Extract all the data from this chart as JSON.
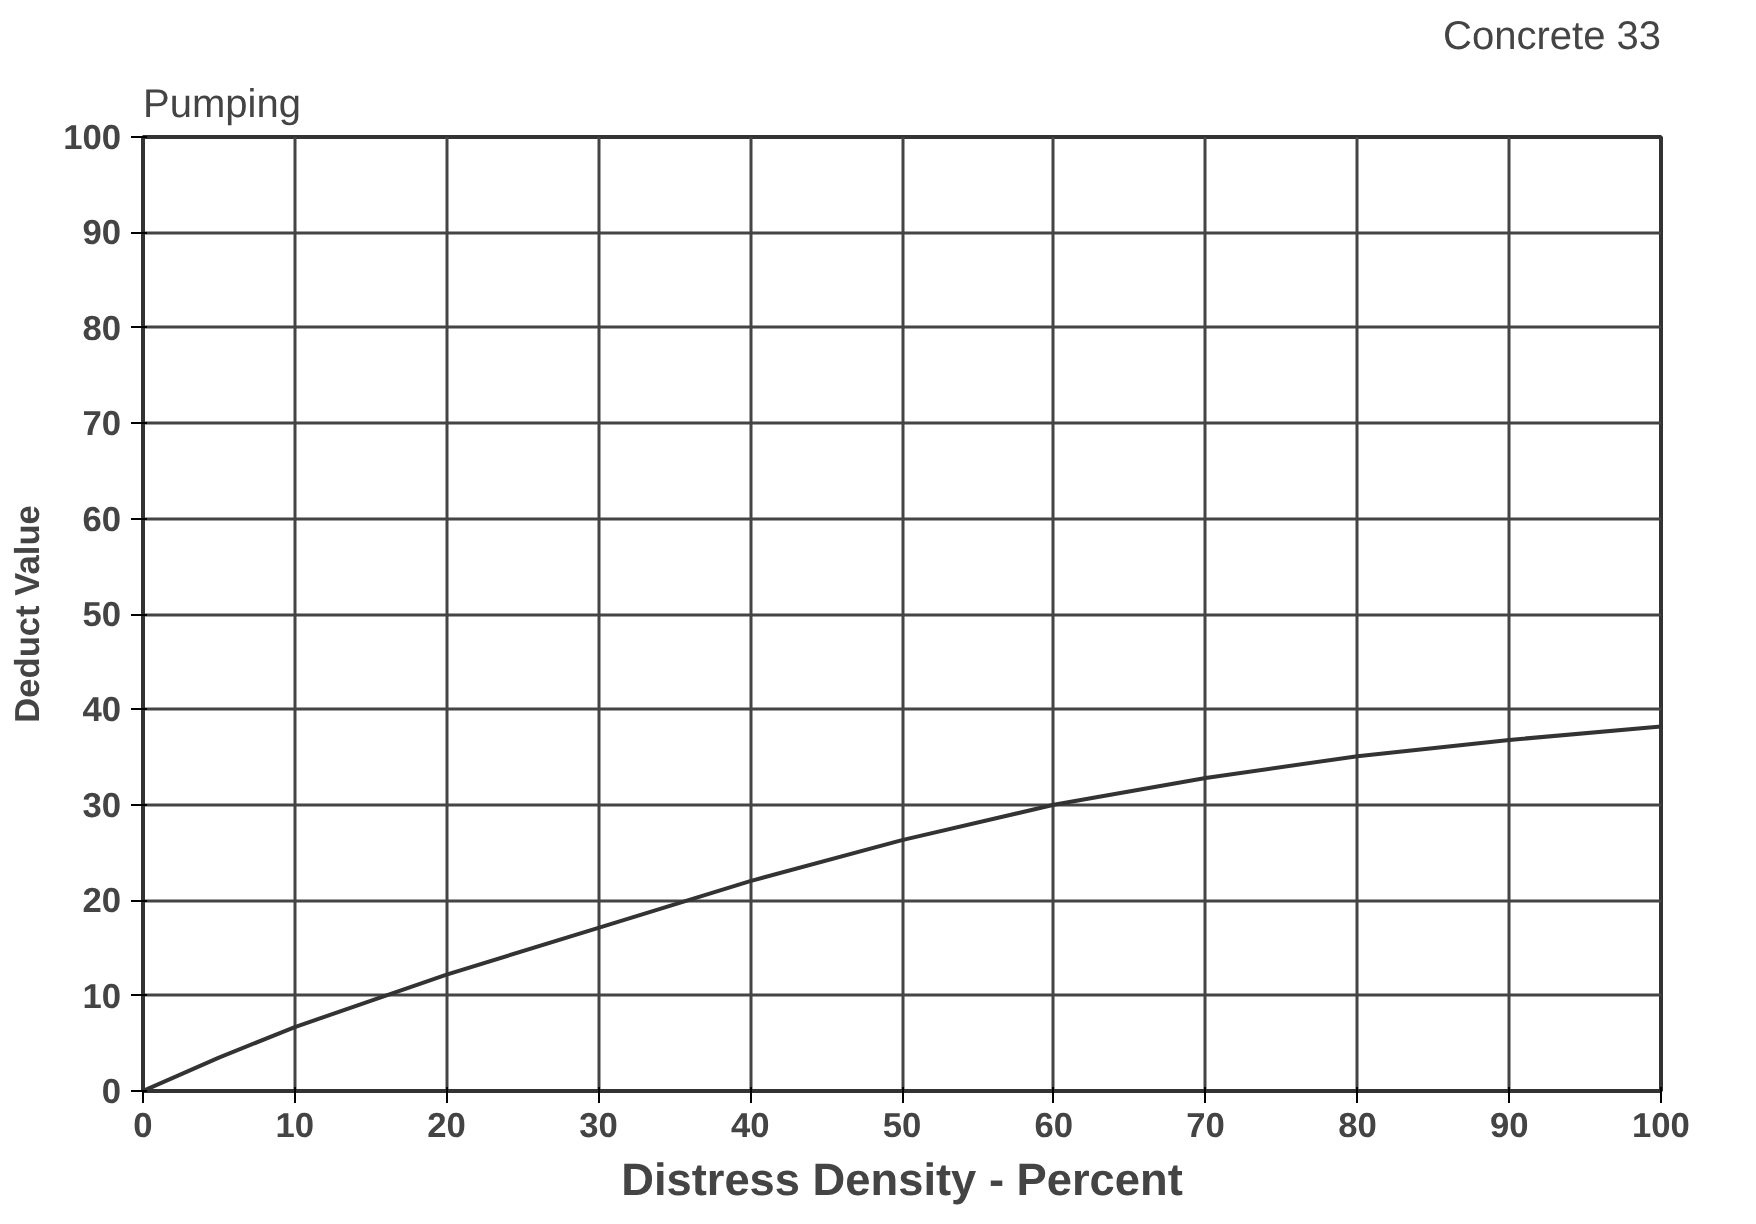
{
  "chart_data": {
    "type": "line",
    "title": "Pumping",
    "annotations": [
      "Concrete 33"
    ],
    "xlabel": "Distress Density - Percent",
    "ylabel": "Deduct Value",
    "x": [
      0,
      5,
      10,
      20,
      30,
      40,
      50,
      60,
      70,
      80,
      90,
      100
    ],
    "series": [
      {
        "color": "#333333",
        "values": [
          0,
          3.5,
          6.7,
          12.2,
          17.1,
          22,
          26.3,
          30,
          32.8,
          35.1,
          36.8,
          38.2
        ]
      }
    ],
    "xlim": [
      0,
      100
    ],
    "ylim": [
      0,
      100
    ],
    "xticks": [
      0,
      10,
      20,
      30,
      40,
      50,
      60,
      70,
      80,
      90,
      100
    ],
    "yticks": [
      0,
      10,
      20,
      30,
      40,
      50,
      60,
      70,
      80,
      90,
      100
    ],
    "grid": true,
    "marker": "none",
    "line_style": "solid"
  }
}
